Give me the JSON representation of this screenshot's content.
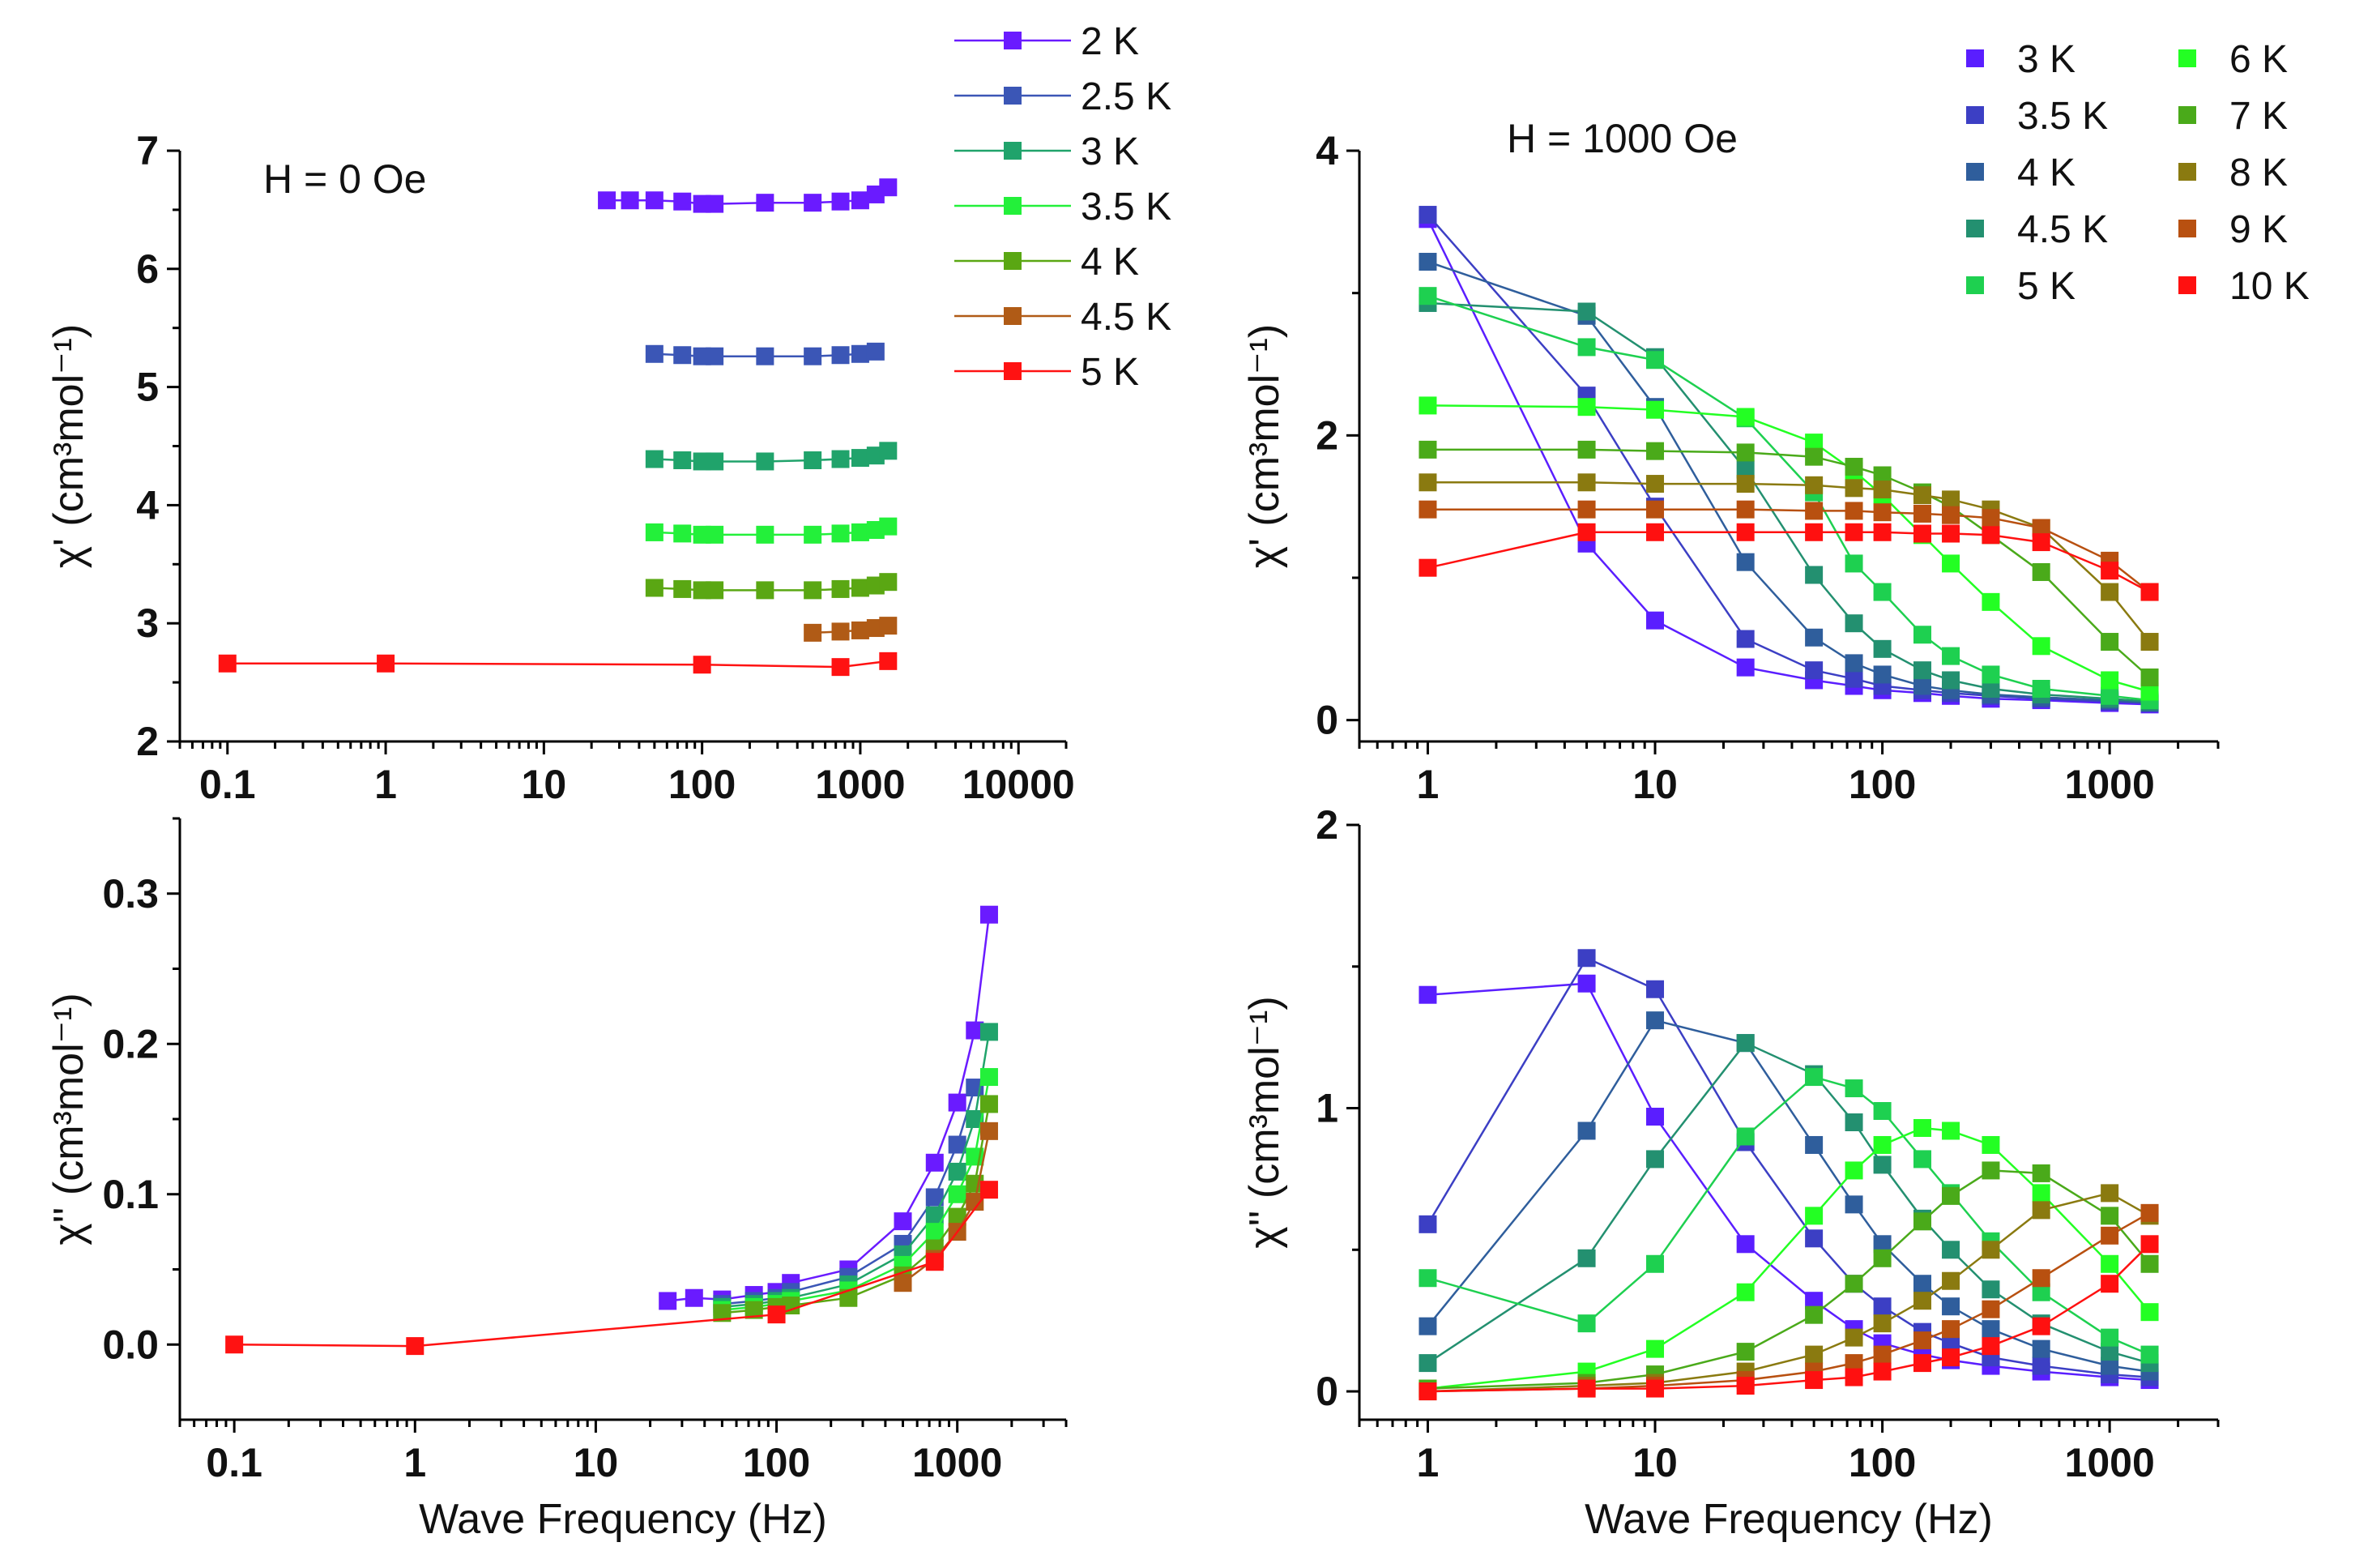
{
  "colors": {
    "2 K": "#6a1bff",
    "2.5 K": "#3b56b6",
    "3 K": "#20a36b",
    "3.5 K": "#23f03a",
    "4 K": "#5aa713",
    "4.5 K": "#b05b16",
    "5 K": "#ff1212",
    "f3 K": "#5a1eff",
    "f3.5 K": "#3c3fc4",
    "f4 K": "#2f5e9c",
    "f4.5 K": "#239070",
    "f5 K": "#1ed050",
    "f6 K": "#23ff23",
    "f7 K": "#4aaa1a",
    "f8 K": "#8a7a10",
    "f9 K": "#b85010",
    "f10 K": "#ff1010"
  },
  "chart_data": [
    {
      "type": "scatter",
      "panel": "top-left",
      "annotation": "H = 0 Oe",
      "ylabel": "χ' (cm³mol⁻¹)",
      "xlabel": "",
      "xscale": "log",
      "xlim": [
        0.05,
        20000
      ],
      "ylim": [
        2,
        7
      ],
      "xticks": [
        "0.1",
        "1",
        "10",
        "100",
        "1000",
        "10000"
      ],
      "yticks": [
        "2",
        "3",
        "4",
        "5",
        "6",
        "7"
      ],
      "legend": {
        "position": "top-right-outside",
        "entries": [
          "2 K",
          "2.5 K",
          "3 K",
          "3.5 K",
          "4 K",
          "4.5 K",
          "5 K"
        ]
      },
      "series": [
        {
          "name": "2 K",
          "x": [
            25,
            35,
            50,
            75,
            100,
            120,
            250,
            500,
            750,
            1000,
            1250,
            1500
          ],
          "y": [
            6.58,
            6.58,
            6.58,
            6.57,
            6.55,
            6.55,
            6.56,
            6.56,
            6.57,
            6.58,
            6.63,
            6.69
          ]
        },
        {
          "name": "2.5 K",
          "x": [
            50,
            75,
            100,
            120,
            250,
            500,
            750,
            1000,
            1250
          ],
          "y": [
            5.28,
            5.27,
            5.26,
            5.26,
            5.26,
            5.26,
            5.27,
            5.28,
            5.3
          ]
        },
        {
          "name": "3 K",
          "x": [
            50,
            75,
            100,
            120,
            250,
            500,
            750,
            1000,
            1250,
            1500
          ],
          "y": [
            4.39,
            4.38,
            4.37,
            4.37,
            4.37,
            4.38,
            4.39,
            4.4,
            4.42,
            4.46
          ]
        },
        {
          "name": "3.5 K",
          "x": [
            50,
            75,
            100,
            120,
            250,
            500,
            750,
            1000,
            1250,
            1500
          ],
          "y": [
            3.77,
            3.76,
            3.75,
            3.75,
            3.75,
            3.75,
            3.76,
            3.77,
            3.79,
            3.82
          ]
        },
        {
          "name": "4 K",
          "x": [
            50,
            75,
            100,
            120,
            250,
            500,
            750,
            1000,
            1250,
            1500
          ],
          "y": [
            3.3,
            3.29,
            3.28,
            3.28,
            3.28,
            3.28,
            3.29,
            3.3,
            3.32,
            3.35
          ]
        },
        {
          "name": "4.5 K",
          "x": [
            500,
            750,
            1000,
            1250,
            1500
          ],
          "y": [
            2.92,
            2.93,
            2.94,
            2.96,
            2.98
          ]
        },
        {
          "name": "5 K",
          "x": [
            0.1,
            1,
            100,
            750,
            1500
          ],
          "y": [
            2.66,
            2.66,
            2.65,
            2.63,
            2.68
          ]
        }
      ]
    },
    {
      "type": "scatter",
      "panel": "bottom-left",
      "ylabel": "χ'' (cm³mol⁻¹)",
      "xlabel": "Wave Frequency (Hz)",
      "xscale": "log",
      "xlim": [
        0.05,
        4000
      ],
      "ylim": [
        -0.05,
        0.35
      ],
      "xticks": [
        "0.1",
        "1",
        "10",
        "100",
        "1000"
      ],
      "yticks": [
        "0.0",
        "0.1",
        "0.2",
        "0.3"
      ],
      "series": [
        {
          "name": "2 K",
          "x": [
            25,
            35,
            50,
            75,
            100,
            120,
            250,
            500,
            750,
            1000,
            1250,
            1500
          ],
          "y": [
            0.029,
            0.031,
            0.03,
            0.033,
            0.035,
            0.041,
            0.05,
            0.082,
            0.121,
            0.161,
            0.209,
            0.286
          ]
        },
        {
          "name": "2.5 K",
          "x": [
            50,
            75,
            100,
            120,
            250,
            500,
            750,
            1000,
            1250
          ],
          "y": [
            0.027,
            0.029,
            0.031,
            0.035,
            0.045,
            0.067,
            0.098,
            0.133,
            0.171
          ]
        },
        {
          "name": "3 K",
          "x": [
            50,
            75,
            100,
            120,
            250,
            500,
            750,
            1000,
            1250,
            1500
          ],
          "y": [
            0.025,
            0.027,
            0.029,
            0.031,
            0.04,
            0.06,
            0.086,
            0.115,
            0.15,
            0.208
          ]
        },
        {
          "name": "3.5 K",
          "x": [
            50,
            75,
            100,
            120,
            250,
            500,
            750,
            1000,
            1250,
            1500
          ],
          "y": [
            0.023,
            0.025,
            0.027,
            0.029,
            0.036,
            0.053,
            0.075,
            0.1,
            0.125,
            0.178
          ]
        },
        {
          "name": "4 K",
          "x": [
            50,
            75,
            100,
            120,
            250,
            500,
            750,
            1000,
            1250,
            1500
          ],
          "y": [
            0.021,
            0.023,
            0.025,
            0.026,
            0.031,
            0.046,
            0.064,
            0.085,
            0.107,
            0.16
          ]
        },
        {
          "name": "4.5 K",
          "x": [
            500,
            750,
            1000,
            1250,
            1500
          ],
          "y": [
            0.041,
            0.057,
            0.075,
            0.095,
            0.142
          ]
        },
        {
          "name": "5 K",
          "x": [
            0.1,
            1,
            100,
            750,
            1500
          ],
          "y": [
            0.0,
            -0.001,
            0.02,
            0.055,
            0.103
          ]
        }
      ]
    },
    {
      "type": "scatter",
      "panel": "top-right",
      "annotation": "H = 1000 Oe",
      "ylabel": "χ' (cm³mol⁻¹)",
      "xlabel": "",
      "xscale": "log",
      "xlim": [
        0.5,
        3000
      ],
      "ylim": [
        -0.15,
        4
      ],
      "xticks": [
        "1",
        "10",
        "100",
        "1000"
      ],
      "yticks": [
        "0",
        "2",
        "4"
      ],
      "legend": {
        "position": "top-right",
        "entries": [
          "3 K",
          "3.5 K",
          "4 K",
          "4.5 K",
          "5 K",
          "6 K",
          "7 K",
          "8 K",
          "9 K",
          "10 K"
        ]
      },
      "series": [
        {
          "name": "3 K",
          "x": [
            1,
            5,
            10,
            25,
            50,
            75,
            100,
            150,
            200,
            300,
            500,
            1000,
            1500
          ],
          "y": [
            3.52,
            1.24,
            0.7,
            0.37,
            0.28,
            0.24,
            0.21,
            0.19,
            0.17,
            0.15,
            0.14,
            0.12,
            0.11
          ]
        },
        {
          "name": "3.5 K",
          "x": [
            1,
            5,
            10,
            25,
            50,
            75,
            100,
            150,
            200,
            300,
            500,
            1000,
            1500
          ],
          "y": [
            3.55,
            2.28,
            1.5,
            0.57,
            0.35,
            0.29,
            0.24,
            0.21,
            0.19,
            0.17,
            0.15,
            0.13,
            0.12
          ]
        },
        {
          "name": "4 K",
          "x": [
            1,
            5,
            10,
            25,
            50,
            75,
            100,
            150,
            200,
            300,
            500,
            1000,
            1500
          ],
          "y": [
            3.22,
            2.84,
            2.2,
            1.11,
            0.58,
            0.4,
            0.32,
            0.24,
            0.21,
            0.18,
            0.16,
            0.14,
            0.12
          ]
        },
        {
          "name": "4.5 K",
          "x": [
            1,
            5,
            10,
            25,
            50,
            75,
            100,
            150,
            200,
            300,
            500,
            1000,
            1500
          ],
          "y": [
            2.93,
            2.87,
            2.55,
            1.76,
            1.02,
            0.68,
            0.5,
            0.35,
            0.28,
            0.22,
            0.18,
            0.15,
            0.13
          ]
        },
        {
          "name": "5 K",
          "x": [
            1,
            5,
            10,
            25,
            50,
            75,
            100,
            150,
            200,
            300,
            500,
            1000,
            1500
          ],
          "y": [
            2.98,
            2.62,
            2.53,
            2.12,
            1.6,
            1.1,
            0.9,
            0.6,
            0.45,
            0.32,
            0.22,
            0.17,
            0.14
          ]
        },
        {
          "name": "6 K",
          "x": [
            1,
            5,
            10,
            25,
            50,
            75,
            100,
            150,
            200,
            300,
            500,
            1000,
            1500
          ],
          "y": [
            2.21,
            2.2,
            2.18,
            2.13,
            1.95,
            1.75,
            1.58,
            1.3,
            1.1,
            0.83,
            0.52,
            0.28,
            0.2
          ]
        },
        {
          "name": "7 K",
          "x": [
            1,
            5,
            10,
            25,
            50,
            75,
            100,
            150,
            200,
            300,
            500,
            1000,
            1500
          ],
          "y": [
            1.9,
            1.9,
            1.89,
            1.88,
            1.85,
            1.78,
            1.72,
            1.6,
            1.5,
            1.3,
            1.04,
            0.55,
            0.3
          ]
        },
        {
          "name": "8 K",
          "x": [
            1,
            5,
            10,
            25,
            50,
            75,
            100,
            150,
            200,
            300,
            500,
            1000,
            1500
          ],
          "y": [
            1.67,
            1.67,
            1.66,
            1.66,
            1.65,
            1.63,
            1.62,
            1.58,
            1.55,
            1.48,
            1.35,
            0.9,
            0.55
          ]
        },
        {
          "name": "9 K",
          "x": [
            1,
            5,
            10,
            25,
            50,
            75,
            100,
            150,
            200,
            300,
            500,
            1000,
            1500
          ],
          "y": [
            1.48,
            1.48,
            1.48,
            1.48,
            1.47,
            1.47,
            1.46,
            1.45,
            1.44,
            1.42,
            1.35,
            1.12,
            0.9
          ]
        },
        {
          "name": "10 K",
          "x": [
            1,
            5,
            10,
            25,
            50,
            75,
            100,
            150,
            200,
            300,
            500,
            1000,
            1500
          ],
          "y": [
            1.07,
            1.32,
            1.32,
            1.32,
            1.32,
            1.32,
            1.32,
            1.31,
            1.31,
            1.3,
            1.25,
            1.05,
            0.9
          ]
        }
      ]
    },
    {
      "type": "scatter",
      "panel": "bottom-right",
      "ylabel": "χ'' (cm³mol⁻¹)",
      "xlabel": "Wave Frequency (Hz)",
      "xscale": "log",
      "xlim": [
        0.5,
        3000
      ],
      "ylim": [
        -0.1,
        2
      ],
      "xticks": [
        "1",
        "10",
        "100",
        "1000"
      ],
      "yticks": [
        "0",
        "1",
        "2"
      ],
      "series": [
        {
          "name": "3 K",
          "x": [
            1,
            5,
            10,
            25,
            50,
            75,
            100,
            150,
            200,
            300,
            500,
            1000,
            1500
          ],
          "y": [
            1.4,
            1.44,
            0.97,
            0.52,
            0.32,
            0.22,
            0.17,
            0.13,
            0.11,
            0.09,
            0.07,
            0.05,
            0.04
          ]
        },
        {
          "name": "3.5 K",
          "x": [
            1,
            5,
            10,
            25,
            50,
            75,
            100,
            150,
            200,
            300,
            500,
            1000,
            1500
          ],
          "y": [
            0.59,
            1.53,
            1.42,
            0.88,
            0.54,
            0.38,
            0.3,
            0.21,
            0.17,
            0.12,
            0.09,
            0.06,
            0.05
          ]
        },
        {
          "name": "4 K",
          "x": [
            1,
            5,
            10,
            25,
            50,
            75,
            100,
            150,
            200,
            300,
            500,
            1000,
            1500
          ],
          "y": [
            0.23,
            0.92,
            1.31,
            1.23,
            0.87,
            0.66,
            0.52,
            0.38,
            0.3,
            0.22,
            0.15,
            0.09,
            0.07
          ]
        },
        {
          "name": "4.5 K",
          "x": [
            1,
            5,
            10,
            25,
            50,
            75,
            100,
            150,
            200,
            300,
            500,
            1000,
            1500
          ],
          "y": [
            0.1,
            0.47,
            0.82,
            1.23,
            1.12,
            0.95,
            0.8,
            0.61,
            0.5,
            0.36,
            0.24,
            0.14,
            0.1
          ]
        },
        {
          "name": "5 K",
          "x": [
            1,
            5,
            10,
            25,
            50,
            75,
            100,
            150,
            200,
            300,
            500,
            1000,
            1500
          ],
          "y": [
            0.4,
            0.24,
            0.45,
            0.9,
            1.11,
            1.07,
            0.99,
            0.82,
            0.7,
            0.53,
            0.35,
            0.19,
            0.13
          ]
        },
        {
          "name": "6 K",
          "x": [
            1,
            5,
            10,
            25,
            50,
            75,
            100,
            150,
            200,
            300,
            500,
            1000,
            1500
          ],
          "y": [
            0.01,
            0.07,
            0.15,
            0.35,
            0.62,
            0.78,
            0.87,
            0.93,
            0.92,
            0.87,
            0.7,
            0.45,
            0.28
          ]
        },
        {
          "name": "7 K",
          "x": [
            1,
            5,
            10,
            25,
            50,
            75,
            100,
            150,
            200,
            300,
            500,
            1000,
            1500
          ],
          "y": [
            0.01,
            0.03,
            0.06,
            0.14,
            0.27,
            0.38,
            0.47,
            0.6,
            0.69,
            0.78,
            0.77,
            0.62,
            0.45
          ]
        },
        {
          "name": "8 K",
          "x": [
            1,
            5,
            10,
            25,
            50,
            75,
            100,
            150,
            200,
            300,
            500,
            1000,
            1500
          ],
          "y": [
            0.0,
            0.02,
            0.03,
            0.07,
            0.13,
            0.19,
            0.24,
            0.32,
            0.39,
            0.5,
            0.64,
            0.7,
            0.62
          ]
        },
        {
          "name": "9 K",
          "x": [
            1,
            5,
            10,
            25,
            50,
            75,
            100,
            150,
            200,
            300,
            500,
            1000,
            1500
          ],
          "y": [
            0.0,
            0.01,
            0.02,
            0.04,
            0.07,
            0.1,
            0.13,
            0.18,
            0.22,
            0.29,
            0.4,
            0.55,
            0.63
          ]
        },
        {
          "name": "10 K",
          "x": [
            1,
            5,
            10,
            25,
            50,
            75,
            100,
            150,
            200,
            300,
            500,
            1000,
            1500
          ],
          "y": [
            0.0,
            0.01,
            0.01,
            0.02,
            0.04,
            0.05,
            0.07,
            0.1,
            0.12,
            0.16,
            0.23,
            0.38,
            0.52
          ]
        }
      ]
    }
  ]
}
